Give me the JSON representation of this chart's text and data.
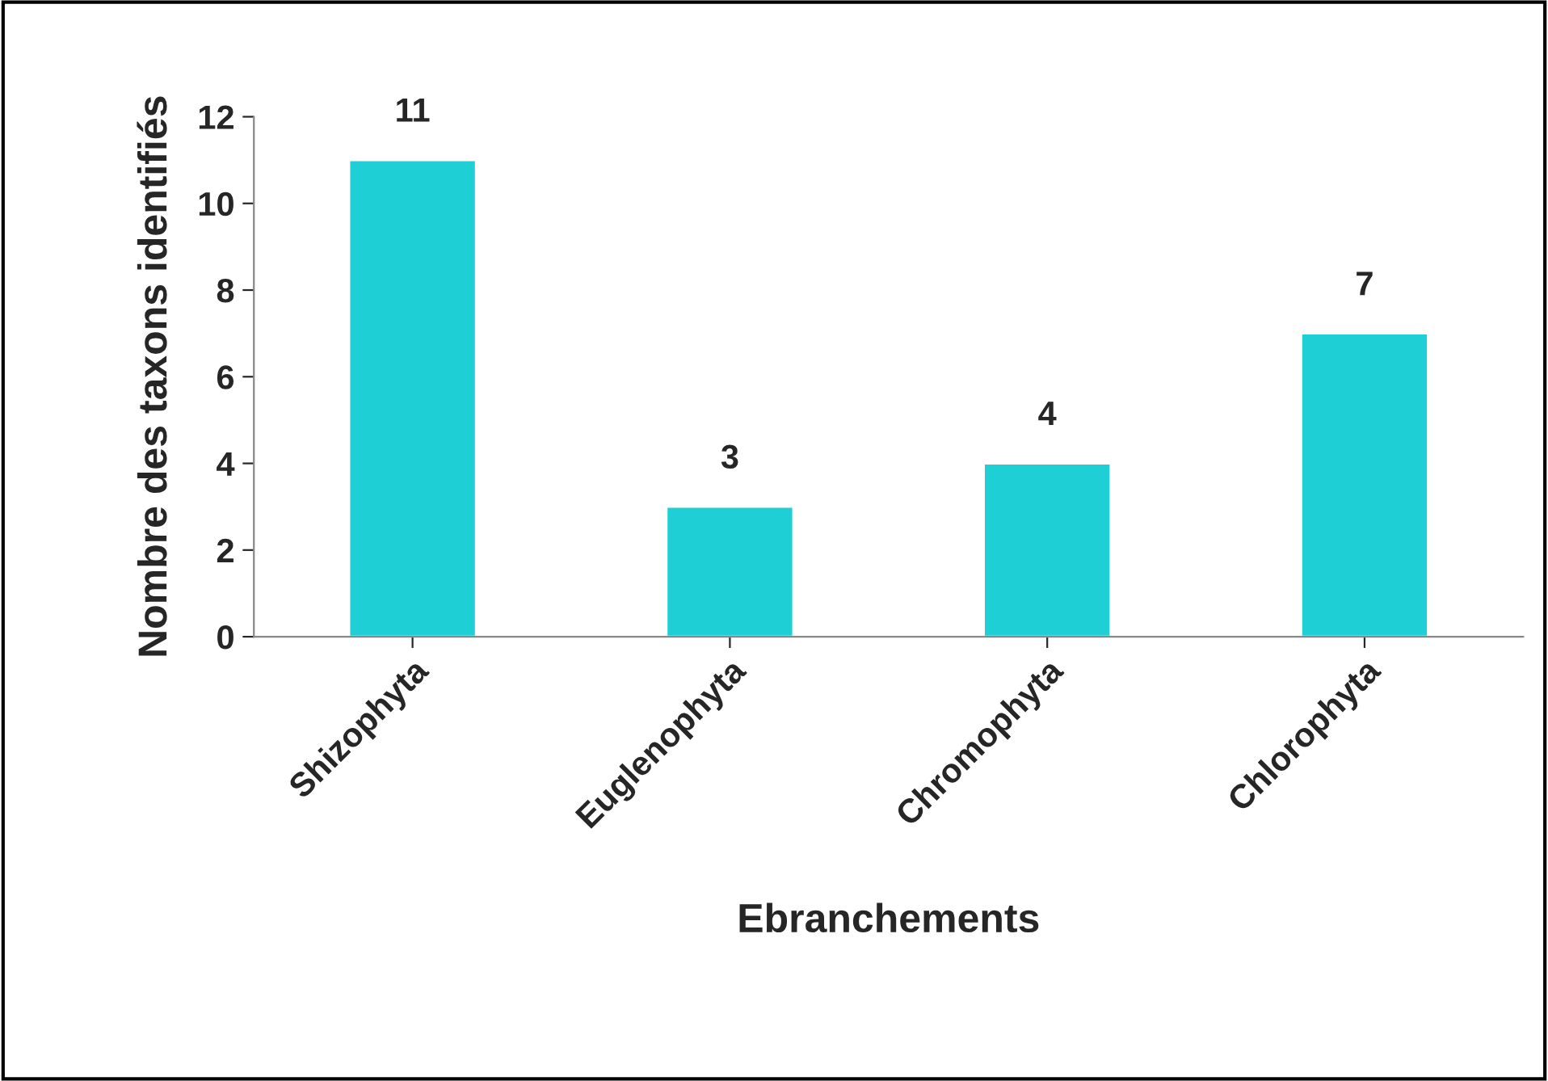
{
  "chart_data": {
    "type": "bar",
    "xlabel": "Ebranchements",
    "ylabel": "Nombre des taxons identifiés",
    "categories": [
      "Shizophyta",
      "Euglenophyta",
      "Chromophyta",
      "Chlorophyta"
    ],
    "values": [
      11,
      3,
      4,
      7
    ],
    "color": "#1ecfd6",
    "ylim": [
      0,
      12
    ],
    "yticks": [
      0,
      2,
      4,
      6,
      8,
      10,
      12
    ],
    "grid": false,
    "data_labels": true
  }
}
